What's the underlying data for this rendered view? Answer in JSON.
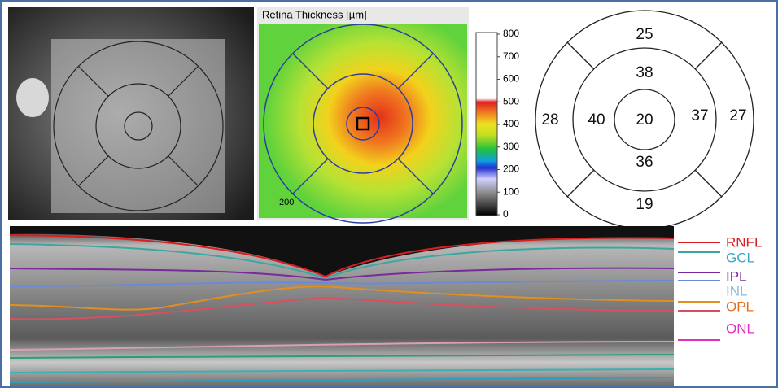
{
  "map": {
    "title": "Retina Thickness [µm]",
    "scale_label": "200"
  },
  "colorbar": {
    "ticks": [
      0,
      100,
      200,
      300,
      400,
      500,
      600,
      700,
      800
    ]
  },
  "etdrs": {
    "outer_superior": 25,
    "inner_superior": 38,
    "outer_temporal": 28,
    "inner_temporal": 40,
    "center": 20,
    "inner_nasal": 37,
    "outer_nasal": 27,
    "inner_inferior": 36,
    "outer_inferior": 19
  },
  "layers": [
    "RNFL",
    "GCL",
    "IPL",
    "INL",
    "OPL",
    "ONL"
  ]
}
